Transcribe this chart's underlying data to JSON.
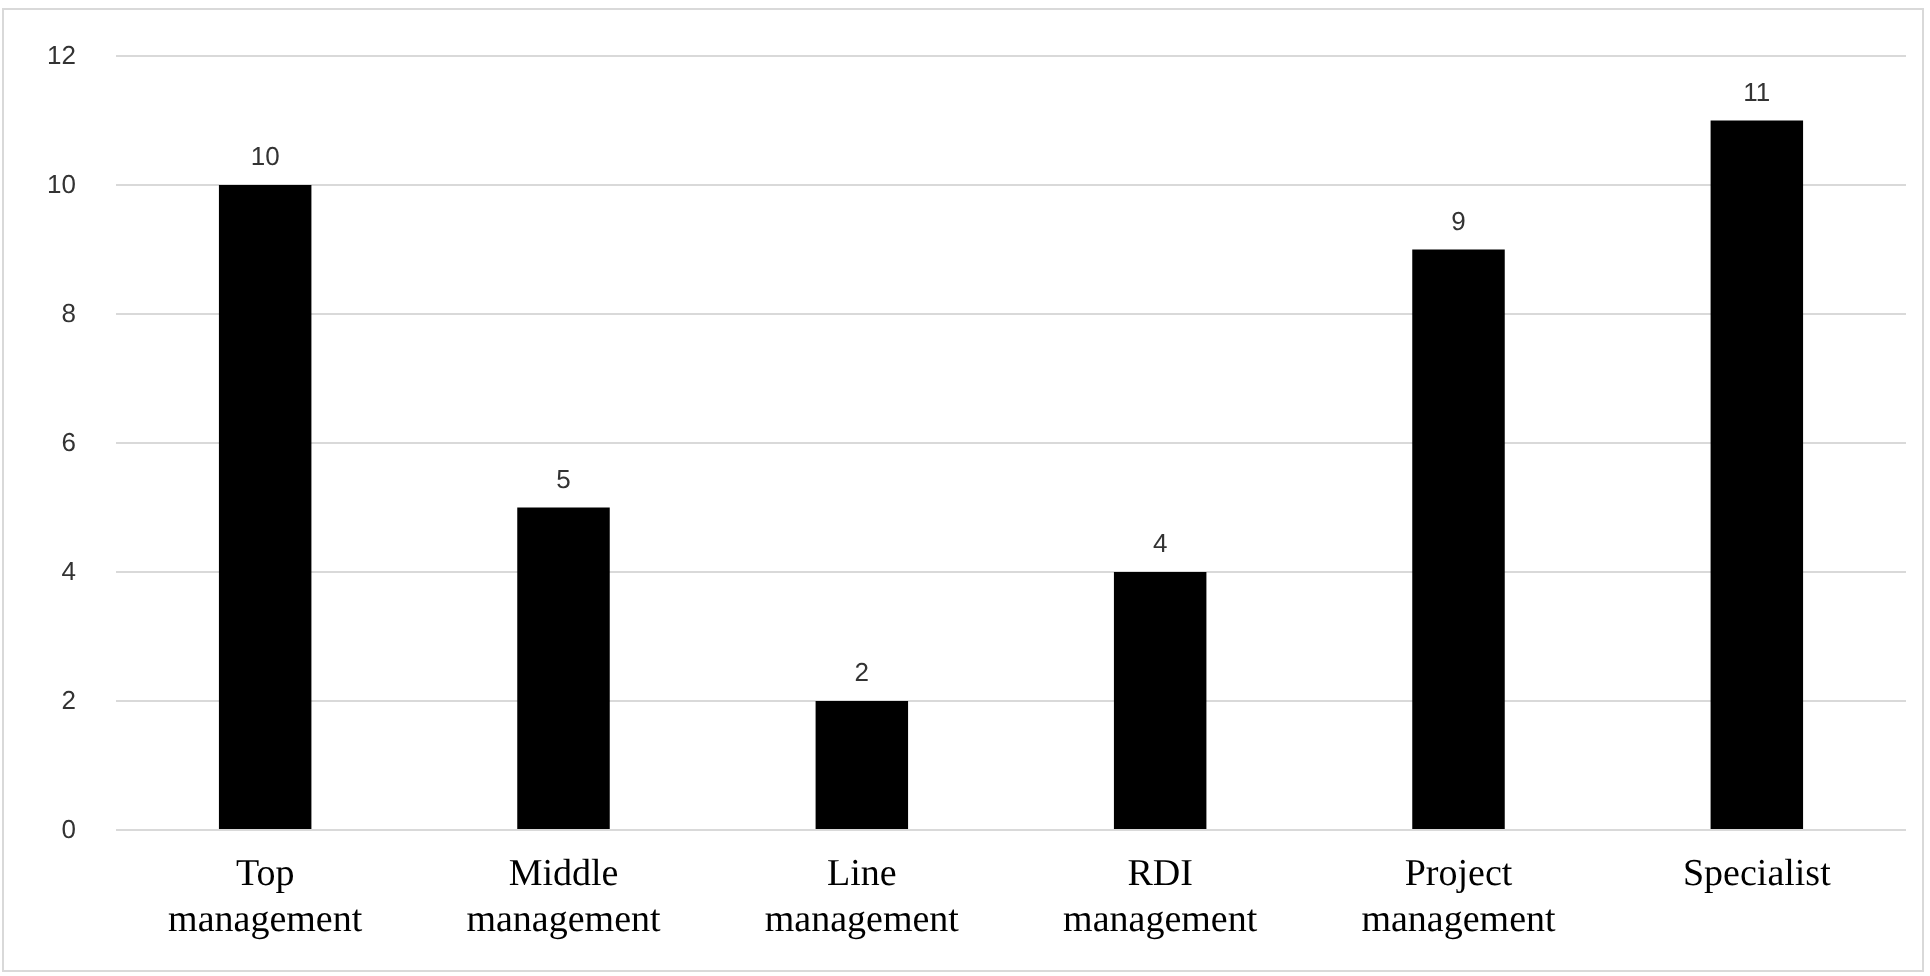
{
  "chart_data": {
    "type": "bar",
    "categories": [
      "Top management",
      "Middle management",
      "Line management",
      "RDI management",
      "Project management",
      "Specialist"
    ],
    "values": [
      10,
      5,
      2,
      4,
      9,
      11
    ],
    "color": "#000000",
    "ylim": [
      0,
      12
    ],
    "yticks": [
      0,
      2,
      4,
      6,
      8,
      10,
      12
    ],
    "grid": "y",
    "data_labels": true
  }
}
